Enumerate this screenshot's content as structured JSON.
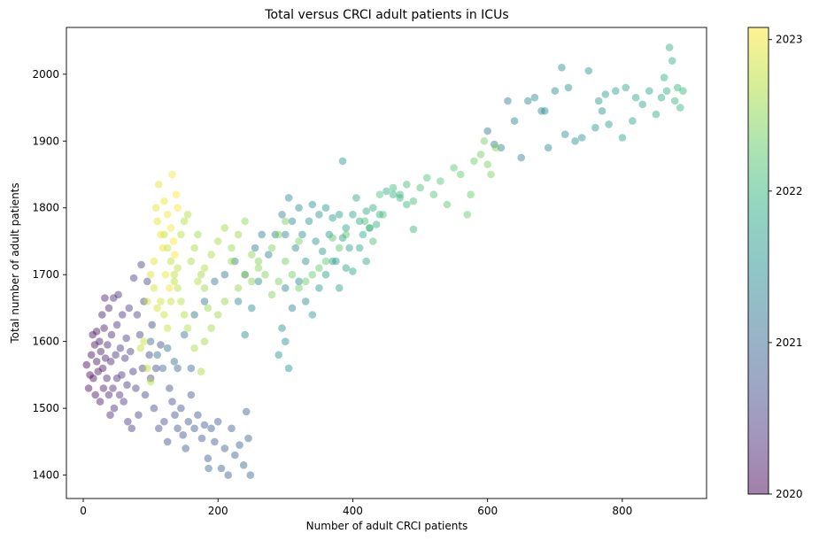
{
  "chart_data": {
    "type": "scatter",
    "title": "Total versus CRCI adult patients in ICUs",
    "xlabel": "Number of adult CRCI patients",
    "ylabel": "Total number of adult patients",
    "xlim": [
      -25,
      925
    ],
    "ylim": [
      1365,
      2070
    ],
    "xticks": [
      0,
      200,
      400,
      600,
      800
    ],
    "yticks": [
      1400,
      1500,
      1600,
      1700,
      1800,
      1900,
      2000
    ],
    "grid": false,
    "legend": "none",
    "marker_alpha": 0.45,
    "colorbar": {
      "colormap": "viridis",
      "range": [
        2020.0,
        2023.08
      ],
      "ticks": [
        {
          "label": "2020",
          "value": 2020.0
        },
        {
          "label": "2021",
          "value": 2021.0
        },
        {
          "label": "2022",
          "value": 2022.0
        },
        {
          "label": "2023",
          "value": 2023.0
        }
      ]
    },
    "point_groups_note_removed": true,
    "points": [
      [
        5,
        1565,
        2020.02
      ],
      [
        8,
        1530,
        2020.03
      ],
      [
        10,
        1550,
        2020.05
      ],
      [
        12,
        1580,
        2020.06
      ],
      [
        14,
        1610,
        2020.07
      ],
      [
        15,
        1545,
        2020.08
      ],
      [
        17,
        1595,
        2020.09
      ],
      [
        18,
        1520,
        2020.1
      ],
      [
        20,
        1570,
        2020.12
      ],
      [
        20,
        1615,
        2020.13
      ],
      [
        22,
        1555,
        2020.14
      ],
      [
        24,
        1600,
        2020.15
      ],
      [
        25,
        1510,
        2020.16
      ],
      [
        26,
        1585,
        2020.17
      ],
      [
        28,
        1640,
        2020.18
      ],
      [
        29,
        1560,
        2020.19
      ],
      [
        30,
        1530,
        2020.2
      ],
      [
        31,
        1620,
        2020.21
      ],
      [
        32,
        1665,
        2020.22
      ],
      [
        33,
        1575,
        2020.23
      ],
      [
        35,
        1545,
        2020.24
      ],
      [
        36,
        1595,
        2020.25
      ],
      [
        38,
        1520,
        2020.26
      ],
      [
        38,
        1650,
        2020.27
      ],
      [
        40,
        1490,
        2020.28
      ],
      [
        41,
        1570,
        2020.29
      ],
      [
        42,
        1610,
        2020.3
      ],
      [
        44,
        1530,
        2020.31
      ],
      [
        45,
        1665,
        2020.32
      ],
      [
        46,
        1500,
        2020.33
      ],
      [
        48,
        1580,
        2020.34
      ],
      [
        50,
        1545,
        2020.35
      ],
      [
        50,
        1625,
        2020.36
      ],
      [
        52,
        1670,
        2020.37
      ],
      [
        54,
        1520,
        2020.38
      ],
      [
        55,
        1590,
        2020.39
      ],
      [
        57,
        1550,
        2020.4
      ],
      [
        58,
        1640,
        2020.41
      ],
      [
        60,
        1510,
        2020.42
      ],
      [
        62,
        1575,
        2020.43
      ],
      [
        64,
        1605,
        2020.44
      ],
      [
        65,
        1535,
        2020.45
      ],
      [
        66,
        1480,
        2020.46
      ],
      [
        68,
        1650,
        2020.47
      ],
      [
        70,
        1585,
        2020.48
      ],
      [
        72,
        1470,
        2020.49
      ],
      [
        74,
        1555,
        2020.5
      ],
      [
        75,
        1695,
        2020.51
      ],
      [
        78,
        1530,
        2020.52
      ],
      [
        80,
        1640,
        2020.53
      ],
      [
        82,
        1490,
        2020.54
      ],
      [
        84,
        1610,
        2020.55
      ],
      [
        86,
        1715,
        2020.56
      ],
      [
        88,
        1560,
        2020.57
      ],
      [
        90,
        1660,
        2020.58
      ],
      [
        92,
        1520,
        2020.59
      ],
      [
        95,
        1690,
        2020.6
      ],
      [
        98,
        1580,
        2020.61
      ],
      [
        100,
        1545,
        2020.62
      ],
      [
        102,
        1625,
        2020.63
      ],
      [
        105,
        1500,
        2020.64
      ],
      [
        108,
        1560,
        2020.65
      ],
      [
        112,
        1470,
        2020.66
      ],
      [
        115,
        1595,
        2020.67
      ],
      [
        120,
        1480,
        2020.68
      ],
      [
        125,
        1450,
        2020.69
      ],
      [
        128,
        1530,
        2020.7
      ],
      [
        132,
        1510,
        2020.71
      ],
      [
        136,
        1490,
        2020.72
      ],
      [
        140,
        1470,
        2020.73
      ],
      [
        145,
        1500,
        2020.74
      ],
      [
        148,
        1460,
        2020.75
      ],
      [
        152,
        1440,
        2020.76
      ],
      [
        156,
        1480,
        2020.77
      ],
      [
        160,
        1520,
        2020.78
      ],
      [
        165,
        1470,
        2020.79
      ],
      [
        170,
        1490,
        2020.8
      ],
      [
        176,
        1455,
        2020.81
      ],
      [
        180,
        1475,
        2020.82
      ],
      [
        185,
        1425,
        2020.83
      ],
      [
        190,
        1470,
        2020.84
      ],
      [
        195,
        1450,
        2020.85
      ],
      [
        200,
        1480,
        2020.86
      ],
      [
        205,
        1410,
        2020.87
      ],
      [
        210,
        1440,
        2020.88
      ],
      [
        215,
        1400,
        2020.89
      ],
      [
        220,
        1470,
        2020.9
      ],
      [
        225,
        1430,
        2020.91
      ],
      [
        232,
        1445,
        2020.92
      ],
      [
        238,
        1415,
        2020.93
      ],
      [
        242,
        1495,
        2020.94
      ],
      [
        245,
        1455,
        2020.95
      ],
      [
        248,
        1400,
        2020.96
      ],
      [
        186,
        1410,
        2020.97
      ],
      [
        160,
        1560,
        2020.98
      ],
      [
        140,
        1560,
        2020.99
      ],
      [
        100,
        1600,
        2021.02
      ],
      [
        110,
        1580,
        2021.04
      ],
      [
        118,
        1560,
        2021.06
      ],
      [
        125,
        1590,
        2021.08
      ],
      [
        135,
        1570,
        2021.1
      ],
      [
        150,
        1610,
        2021.12
      ],
      [
        165,
        1640,
        2021.14
      ],
      [
        180,
        1660,
        2021.16
      ],
      [
        195,
        1690,
        2021.18
      ],
      [
        210,
        1700,
        2021.2
      ],
      [
        225,
        1720,
        2021.22
      ],
      [
        240,
        1700,
        2021.24
      ],
      [
        255,
        1740,
        2021.26
      ],
      [
        265,
        1760,
        2021.28
      ],
      [
        275,
        1730,
        2021.3
      ],
      [
        285,
        1760,
        2021.32
      ],
      [
        295,
        1790,
        2021.34
      ],
      [
        300,
        1760,
        2021.36
      ],
      [
        305,
        1815,
        2021.38
      ],
      [
        310,
        1780,
        2021.4
      ],
      [
        315,
        1740,
        2021.42
      ],
      [
        320,
        1800,
        2021.44
      ],
      [
        325,
        1760,
        2021.46
      ],
      [
        330,
        1720,
        2021.48
      ],
      [
        335,
        1780,
        2021.5
      ],
      [
        340,
        1805,
        2021.52
      ],
      [
        345,
        1750,
        2021.54
      ],
      [
        350,
        1790,
        2021.56
      ],
      [
        355,
        1735,
        2021.58
      ],
      [
        360,
        1800,
        2021.6
      ],
      [
        365,
        1760,
        2021.62
      ],
      [
        370,
        1785,
        2021.64
      ],
      [
        375,
        1720,
        2021.66
      ],
      [
        380,
        1790,
        2021.68
      ],
      [
        385,
        1755,
        2021.7
      ],
      [
        390,
        1770,
        2021.72
      ],
      [
        395,
        1740,
        2021.74
      ],
      [
        400,
        1790,
        2021.76
      ],
      [
        405,
        1815,
        2021.78
      ],
      [
        410,
        1780,
        2021.8
      ],
      [
        415,
        1760,
        2021.82
      ],
      [
        420,
        1795,
        2021.84
      ],
      [
        425,
        1770,
        2021.86
      ],
      [
        430,
        1800,
        2021.88
      ],
      [
        435,
        1775,
        2021.9
      ],
      [
        440,
        1790,
        2021.92
      ],
      [
        300,
        1680,
        2021.3
      ],
      [
        310,
        1650,
        2021.33
      ],
      [
        320,
        1690,
        2021.36
      ],
      [
        330,
        1660,
        2021.39
      ],
      [
        305,
        1560,
        2021.5
      ],
      [
        300,
        1600,
        2021.52
      ],
      [
        295,
        1620,
        2021.54
      ],
      [
        290,
        1580,
        2021.56
      ],
      [
        260,
        1690,
        2021.45
      ],
      [
        250,
        1650,
        2021.42
      ],
      [
        240,
        1610,
        2021.4
      ],
      [
        230,
        1660,
        2021.38
      ],
      [
        340,
        1640,
        2021.6
      ],
      [
        350,
        1680,
        2021.62
      ],
      [
        360,
        1700,
        2021.64
      ],
      [
        370,
        1720,
        2021.66
      ],
      [
        380,
        1680,
        2021.68
      ],
      [
        390,
        1710,
        2021.7
      ],
      [
        400,
        1705,
        2021.72
      ],
      [
        410,
        1740,
        2021.74
      ],
      [
        420,
        1720,
        2021.76
      ],
      [
        385,
        1870,
        2021.6
      ],
      [
        620,
        1890,
        2021.3
      ],
      [
        640,
        1930,
        2021.32
      ],
      [
        650,
        1875,
        2021.34
      ],
      [
        660,
        1960,
        2021.36
      ],
      [
        670,
        1965,
        2021.38
      ],
      [
        680,
        1945,
        2021.4
      ],
      [
        690,
        1890,
        2021.42
      ],
      [
        700,
        1975,
        2021.44
      ],
      [
        710,
        2010,
        2021.46
      ],
      [
        715,
        1910,
        2021.48
      ],
      [
        720,
        1980,
        2021.5
      ],
      [
        730,
        1900,
        2021.52
      ],
      [
        740,
        1905,
        2021.54
      ],
      [
        750,
        2005,
        2021.56
      ],
      [
        760,
        1920,
        2021.58
      ],
      [
        765,
        1960,
        2021.6
      ],
      [
        770,
        1945,
        2021.62
      ],
      [
        775,
        1970,
        2021.64
      ],
      [
        780,
        1925,
        2021.66
      ],
      [
        790,
        1975,
        2021.68
      ],
      [
        800,
        1905,
        2021.7
      ],
      [
        805,
        1980,
        2021.72
      ],
      [
        815,
        1930,
        2021.74
      ],
      [
        820,
        1965,
        2021.76
      ],
      [
        830,
        1955,
        2021.78
      ],
      [
        840,
        1975,
        2021.8
      ],
      [
        850,
        1940,
        2021.82
      ],
      [
        858,
        1965,
        2021.84
      ],
      [
        862,
        1995,
        2021.86
      ],
      [
        866,
        1975,
        2021.88
      ],
      [
        870,
        2040,
        2021.9
      ],
      [
        874,
        2020,
        2021.92
      ],
      [
        878,
        1960,
        2021.94
      ],
      [
        882,
        1980,
        2021.96
      ],
      [
        886,
        1950,
        2021.98
      ],
      [
        890,
        1975,
        2021.99
      ],
      [
        600,
        1915,
        2021.2
      ],
      [
        610,
        1895,
        2021.22
      ],
      [
        630,
        1960,
        2021.25
      ],
      [
        685,
        1945,
        2021.43
      ],
      [
        450,
        1825,
        2021.85
      ],
      [
        460,
        1820,
        2021.9
      ],
      [
        470,
        1815,
        2021.95
      ],
      [
        480,
        1805,
        2021.97
      ],
      [
        490,
        1768,
        2021.98
      ],
      [
        460,
        1830,
        2022.02
      ],
      [
        470,
        1820,
        2022.05
      ],
      [
        480,
        1835,
        2022.08
      ],
      [
        490,
        1810,
        2022.1
      ],
      [
        500,
        1830,
        2022.12
      ],
      [
        510,
        1845,
        2022.15
      ],
      [
        520,
        1820,
        2022.18
      ],
      [
        530,
        1840,
        2022.2
      ],
      [
        540,
        1805,
        2022.22
      ],
      [
        550,
        1860,
        2022.25
      ],
      [
        560,
        1850,
        2022.28
      ],
      [
        570,
        1790,
        2022.3
      ],
      [
        575,
        1820,
        2022.32
      ],
      [
        580,
        1870,
        2022.34
      ],
      [
        590,
        1880,
        2022.36
      ],
      [
        595,
        1900,
        2022.38
      ],
      [
        600,
        1865,
        2022.4
      ],
      [
        605,
        1850,
        2022.42
      ],
      [
        612,
        1890,
        2022.44
      ],
      [
        418,
        1780,
        2022.1
      ],
      [
        425,
        1770,
        2022.12
      ],
      [
        430,
        1750,
        2022.14
      ],
      [
        440,
        1820,
        2022.16
      ],
      [
        445,
        1790,
        2022.18
      ],
      [
        390,
        1760,
        2022.2
      ],
      [
        380,
        1740,
        2022.22
      ],
      [
        370,
        1755,
        2022.24
      ],
      [
        360,
        1720,
        2022.26
      ],
      [
        350,
        1710,
        2022.28
      ],
      [
        340,
        1700,
        2022.3
      ],
      [
        330,
        1690,
        2022.32
      ],
      [
        320,
        1680,
        2022.34
      ],
      [
        310,
        1700,
        2022.36
      ],
      [
        300,
        1720,
        2022.38
      ],
      [
        290,
        1690,
        2022.4
      ],
      [
        280,
        1670,
        2022.42
      ],
      [
        270,
        1700,
        2022.44
      ],
      [
        260,
        1720,
        2022.46
      ],
      [
        250,
        1690,
        2022.48
      ],
      [
        240,
        1700,
        2022.5
      ],
      [
        230,
        1680,
        2022.52
      ],
      [
        220,
        1720,
        2022.54
      ],
      [
        210,
        1660,
        2022.56
      ],
      [
        200,
        1640,
        2022.58
      ],
      [
        190,
        1620,
        2022.6
      ],
      [
        180,
        1600,
        2022.62
      ],
      [
        175,
        1555,
        2022.64
      ],
      [
        165,
        1590,
        2022.66
      ],
      [
        155,
        1620,
        2022.68
      ],
      [
        150,
        1640,
        2022.7
      ],
      [
        145,
        1660,
        2022.72
      ],
      [
        140,
        1680,
        2022.74
      ],
      [
        135,
        1700,
        2022.76
      ],
      [
        130,
        1720,
        2022.78
      ],
      [
        125,
        1740,
        2022.8
      ],
      [
        120,
        1760,
        2022.82
      ],
      [
        170,
        1690,
        2022.7
      ],
      [
        180,
        1710,
        2022.68
      ],
      [
        190,
        1730,
        2022.66
      ],
      [
        200,
        1750,
        2022.64
      ],
      [
        210,
        1770,
        2022.6
      ],
      [
        220,
        1740,
        2022.58
      ],
      [
        230,
        1760,
        2022.56
      ],
      [
        240,
        1780,
        2022.54
      ],
      [
        250,
        1730,
        2022.52
      ],
      [
        260,
        1710,
        2022.5
      ],
      [
        280,
        1740,
        2022.45
      ],
      [
        290,
        1760,
        2022.43
      ],
      [
        300,
        1780,
        2022.41
      ],
      [
        320,
        1750,
        2022.39
      ],
      [
        100,
        1700,
        2022.9
      ],
      [
        105,
        1720,
        2022.92
      ],
      [
        108,
        1800,
        2022.94
      ],
      [
        110,
        1780,
        2022.95
      ],
      [
        112,
        1835,
        2022.96
      ],
      [
        115,
        1760,
        2022.97
      ],
      [
        118,
        1740,
        2022.98
      ],
      [
        120,
        1810,
        2022.99
      ],
      [
        122,
        1700,
        2023.0
      ],
      [
        125,
        1790,
        2023.01
      ],
      [
        128,
        1680,
        2023.02
      ],
      [
        130,
        1770,
        2023.03
      ],
      [
        132,
        1850,
        2023.04
      ],
      [
        134,
        1750,
        2023.05
      ],
      [
        136,
        1730,
        2023.06
      ],
      [
        138,
        1820,
        2023.07
      ],
      [
        140,
        1800,
        2023.08
      ],
      [
        105,
        1680,
        2022.88
      ],
      [
        110,
        1650,
        2022.86
      ],
      [
        115,
        1660,
        2022.84
      ],
      [
        120,
        1640,
        2022.82
      ],
      [
        125,
        1620,
        2022.8
      ],
      [
        130,
        1660,
        2022.78
      ],
      [
        135,
        1690,
        2022.76
      ],
      [
        140,
        1710,
        2022.74
      ],
      [
        145,
        1760,
        2022.72
      ],
      [
        150,
        1780,
        2022.7
      ],
      [
        155,
        1790,
        2022.68
      ],
      [
        95,
        1660,
        2022.85
      ],
      [
        90,
        1600,
        2022.8
      ],
      [
        85,
        1590,
        2022.78
      ],
      [
        95,
        1560,
        2022.75
      ],
      [
        100,
        1540,
        2022.72
      ],
      [
        160,
        1720,
        2022.66
      ],
      [
        165,
        1740,
        2022.64
      ],
      [
        170,
        1760,
        2022.62
      ],
      [
        175,
        1700,
        2022.6
      ],
      [
        180,
        1680,
        2022.58
      ],
      [
        185,
        1650,
        2022.56
      ]
    ]
  }
}
